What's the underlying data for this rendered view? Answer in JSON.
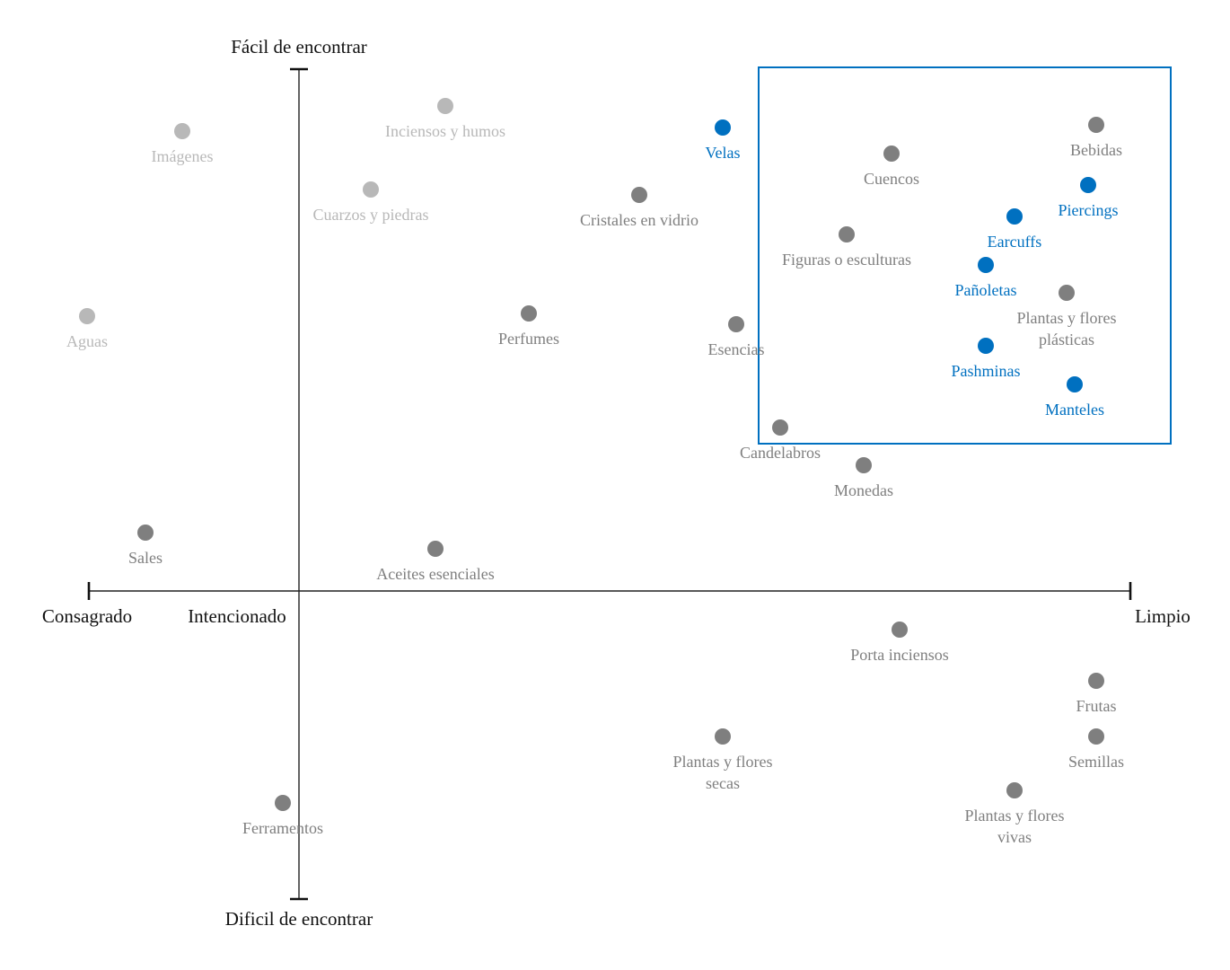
{
  "colors": {
    "dark": "#7f7f7f",
    "light": "#b8b8b8",
    "highlight": "#0070c0",
    "axis": "#222222"
  },
  "axes": {
    "top": "Fácil de encontrar",
    "bottom": "Dificil de encontrar",
    "left_outer": "Consagrado",
    "left_inner": "Intencionado",
    "right": "Limpio"
  },
  "items": [
    {
      "lines": [
        "Imágenes"
      ],
      "style": "light"
    },
    {
      "lines": [
        "Inciensos y humos"
      ],
      "style": "light"
    },
    {
      "lines": [
        "Cuarzos y piedras"
      ],
      "style": "light"
    },
    {
      "lines": [
        "Aguas"
      ],
      "style": "light"
    },
    {
      "lines": [
        "Velas"
      ],
      "style": "highlight"
    },
    {
      "lines": [
        "Cristales en vidrio"
      ],
      "style": "dark"
    },
    {
      "lines": [
        "Perfumes"
      ],
      "style": "dark"
    },
    {
      "lines": [
        "Esencias"
      ],
      "style": "dark"
    },
    {
      "lines": [
        "Cuencos"
      ],
      "style": "dark"
    },
    {
      "lines": [
        "Bebidas"
      ],
      "style": "dark"
    },
    {
      "lines": [
        "Piercings"
      ],
      "style": "highlight"
    },
    {
      "lines": [
        "Earcuffs"
      ],
      "style": "highlight"
    },
    {
      "lines": [
        "Figuras o esculturas"
      ],
      "style": "dark"
    },
    {
      "lines": [
        "Pañoletas"
      ],
      "style": "highlight"
    },
    {
      "lines": [
        "Plantas y flores",
        "plásticas"
      ],
      "style": "dark"
    },
    {
      "lines": [
        "Pashminas"
      ],
      "style": "highlight"
    },
    {
      "lines": [
        "Manteles"
      ],
      "style": "highlight"
    },
    {
      "lines": [
        "Candelabros"
      ],
      "style": "dark"
    },
    {
      "lines": [
        "Monedas"
      ],
      "style": "dark"
    },
    {
      "lines": [
        "Sales"
      ],
      "style": "dark"
    },
    {
      "lines": [
        "Aceites esenciales"
      ],
      "style": "dark"
    },
    {
      "lines": [
        "Porta inciensos"
      ],
      "style": "dark"
    },
    {
      "lines": [
        "Frutas"
      ],
      "style": "dark"
    },
    {
      "lines": [
        "Semillas"
      ],
      "style": "dark"
    },
    {
      "lines": [
        "Plantas y flores",
        "secas"
      ],
      "style": "dark"
    },
    {
      "lines": [
        "Plantas y flores",
        "vivas"
      ],
      "style": "dark"
    },
    {
      "lines": [
        "Ferramentos"
      ],
      "style": "dark"
    }
  ]
}
